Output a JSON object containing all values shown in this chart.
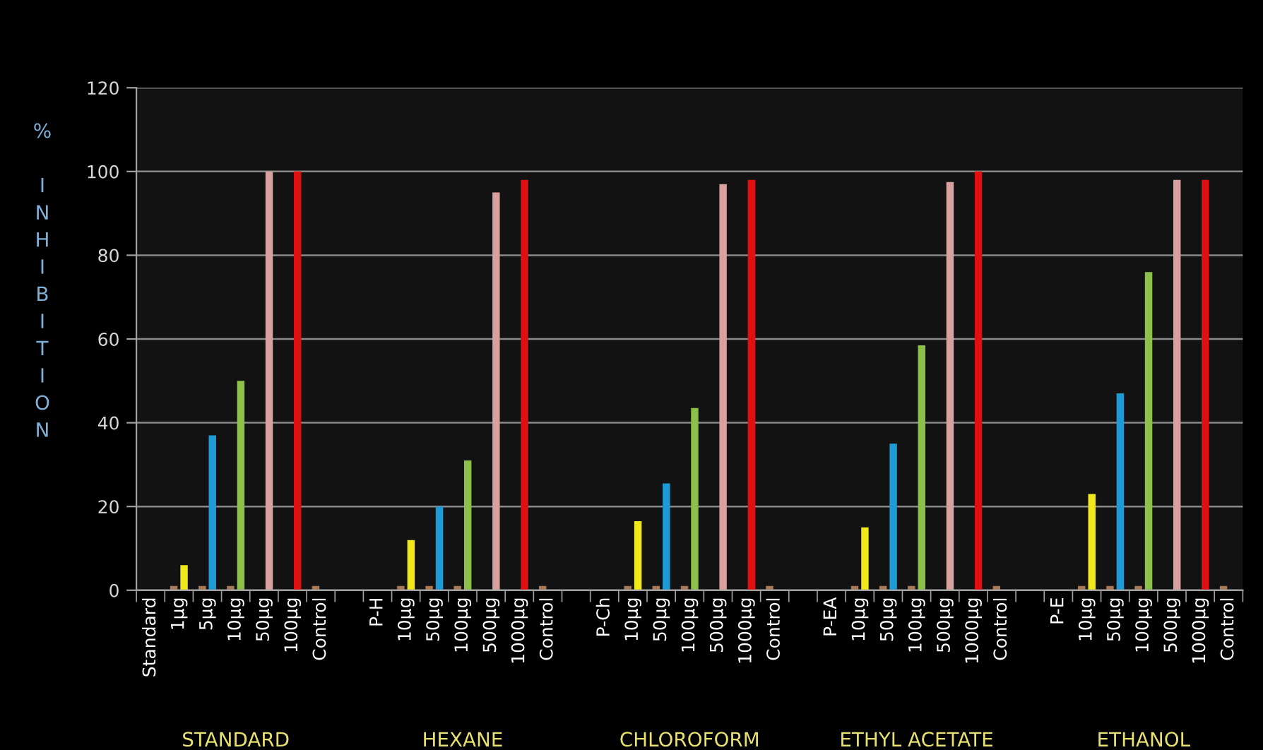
{
  "chart_data": {
    "type": "bar",
    "ylabel": "% INHIBITION",
    "categories": [
      "Standard",
      "1µg",
      "5µg",
      "10µg",
      "50µg",
      "100µg",
      "Control",
      null,
      "P-H",
      "10µg",
      "50µg",
      "100µg",
      "500µg",
      "1000µg",
      "Control",
      null,
      "P-Ch",
      "10µg",
      "50µg",
      "100µg",
      "500µg",
      "1000µg",
      "Control",
      null,
      "P-EA",
      "10µg",
      "50µg",
      "100µg",
      "500µg",
      "1000µg",
      "Control",
      null,
      "P-E",
      "10µg",
      "50µg",
      "100µg",
      "500µg",
      "1000µg",
      "Control"
    ],
    "series": [
      {
        "color": "#a87a58",
        "values": [
          null,
          1,
          1,
          1,
          null,
          null,
          1,
          null,
          null,
          1,
          1,
          1,
          null,
          null,
          1,
          null,
          null,
          1,
          1,
          1,
          null,
          null,
          1,
          null,
          null,
          1,
          1,
          1,
          null,
          null,
          1,
          null,
          null,
          1,
          1,
          1,
          null,
          null,
          1
        ]
      },
      {
        "colors": [
          null,
          "#f0e81a",
          "#1e9bd7",
          "#8cc04a",
          "#d9a0a0",
          "#e01010",
          null,
          null,
          null,
          "#f0e81a",
          "#1e9bd7",
          "#8cc04a",
          "#d9a0a0",
          "#e01010",
          null,
          null,
          null,
          "#f0e81a",
          "#1e9bd7",
          "#8cc04a",
          "#d9a0a0",
          "#e01010",
          null,
          null,
          null,
          "#f0e81a",
          "#1e9bd7",
          "#8cc04a",
          "#d9a0a0",
          "#e01010",
          null,
          null,
          null,
          "#f0e81a",
          "#1e9bd7",
          "#8cc04a",
          "#d9a0a0",
          "#e01010",
          null
        ],
        "values": [
          null,
          6,
          37,
          50,
          100,
          100,
          null,
          null,
          null,
          12,
          20,
          31,
          95,
          98,
          null,
          null,
          null,
          16.5,
          25.5,
          43.5,
          97,
          98,
          null,
          null,
          null,
          15,
          35,
          58.5,
          97.5,
          100,
          null,
          null,
          null,
          23,
          47,
          76,
          98,
          98,
          null
        ]
      }
    ],
    "ylim": [
      0,
      120
    ],
    "yticks": [
      0,
      20,
      40,
      60,
      80,
      100,
      120
    ],
    "grid": "y",
    "annotations": [
      "STANDARD",
      "HEXANE",
      "CHLOROFORM",
      "ETHYL ACETATE",
      "ETHANOL"
    ]
  }
}
